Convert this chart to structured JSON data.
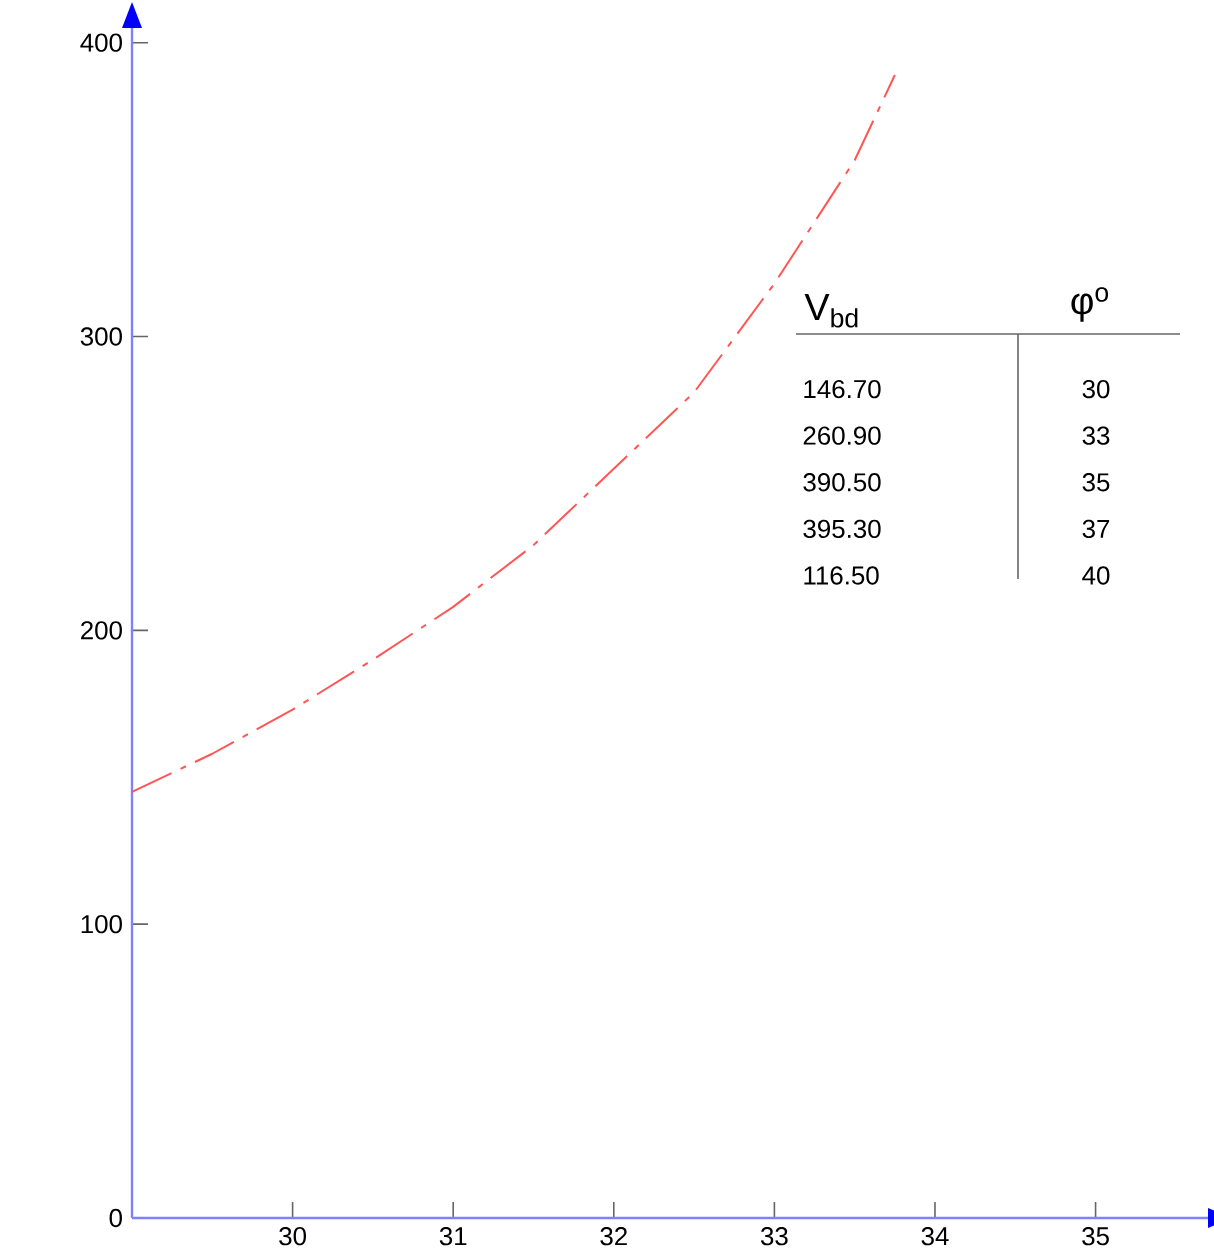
{
  "chart_data": {
    "type": "line",
    "x": [
      29,
      29.5,
      30,
      30.5,
      31,
      31.5,
      32,
      32.5,
      33,
      33.5,
      33.75
    ],
    "series": [
      {
        "color": "#ff5555",
        "values": [
          145,
          158,
          173,
          190,
          208,
          229,
          255,
          281,
          318,
          360,
          389
        ]
      }
    ],
    "line_style": "dashed",
    "marker": "none",
    "grid": false,
    "xlim": [
      29,
      35.7
    ],
    "ylim": [
      0,
      405
    ],
    "xticks": [
      30,
      31,
      32,
      33,
      34,
      35
    ],
    "yticks": [
      0,
      100,
      200,
      300,
      400
    ],
    "annotations": [
      "V$_{bd}$",
      "φ$^{o}$",
      "146.70",
      "30",
      "260.90",
      "33",
      "390.50",
      "35",
      "395.30",
      "37",
      "116.50",
      "40"
    ]
  }
}
